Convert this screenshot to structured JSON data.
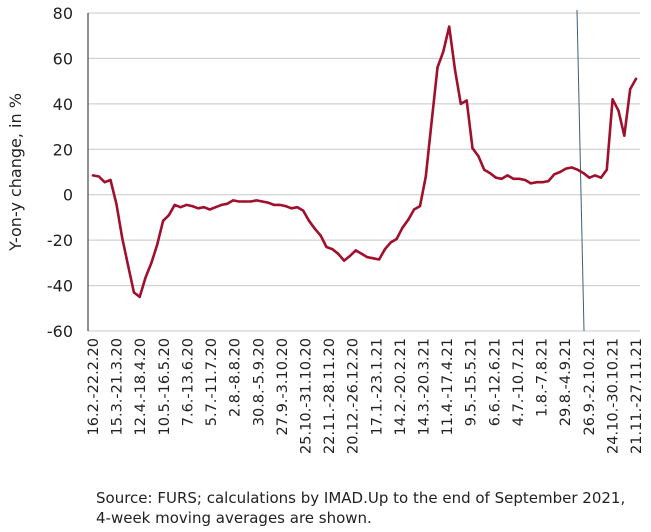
{
  "chart_data": {
    "type": "line",
    "ylabel": "Y-on-y change, in %",
    "xlabel": "",
    "ylim": [
      -60,
      80
    ],
    "yticks": [
      80,
      60,
      40,
      20,
      0,
      -20,
      -40,
      -60
    ],
    "grid": true,
    "legend": "none",
    "colors": {
      "line": "#a0102c",
      "grid": "#c8c8c8",
      "divider": "#3d5f7a",
      "axis": "#222222"
    },
    "x_tick_labels": [
      "16.2.-22.2.20",
      "15.3.-21.3.20",
      "12.4.-18.4.20",
      "10.5.-16.5.20",
      "7.6.-13.6.20",
      "5.7.-11.7.20",
      "2.8.-8.8.20",
      "30.8.-5.9.20",
      "27.9.-3.10.20",
      "25.10.-31.10.20",
      "22.11.-28.11.20",
      "20.12.-26.12.20",
      "17.1.-23.1.21",
      "14.2.-20.2.21",
      "14.3.-20.3.21",
      "11.4.-17.4.21",
      "9.5.-15.5.21",
      "6.6.-12.6.21",
      "4.7.-10.7.21",
      "1.8.-7.8.21",
      "29.8.-4.9.21",
      "26.9.-2.10.21",
      "24.10.-30.10.21",
      "21.11.-27.11.21"
    ],
    "series": [
      {
        "values": [
          8.5,
          8,
          5.5,
          6.5,
          -4,
          -19,
          -31,
          -43,
          -45,
          -36.5,
          -30,
          -22,
          -11.5,
          -9,
          -4.5,
          -5.5,
          -4.5,
          -5,
          -6,
          -5.5,
          -6.5,
          -5.5,
          -4.5,
          -4,
          -2.5,
          -3,
          -3,
          -3,
          -2.5,
          -3,
          -3.5,
          -4.5,
          -4.5,
          -5,
          -6,
          -5.5,
          -7,
          -11.5,
          -15,
          -18,
          -23,
          -24,
          -26,
          -29,
          -27,
          -24.5,
          -26,
          -27.5,
          -28,
          -28.5,
          -24,
          -21,
          -19.5,
          -14.5,
          -11,
          -6.5,
          -5,
          8,
          32,
          56,
          63,
          74,
          55,
          40,
          41.5,
          20.5,
          17,
          11,
          9.5,
          7.5,
          7,
          8.5,
          7,
          7,
          6.5,
          5,
          5.5,
          5.5,
          6,
          9,
          10,
          11.5,
          12,
          11,
          9.5,
          7.5,
          8.5,
          7.5,
          11,
          42,
          37,
          26,
          46.5,
          51
        ]
      }
    ],
    "source_text": "Source: FURS; calculations by IMAD.Up to the end of September 2021, 4-week moving averages are shown."
  }
}
